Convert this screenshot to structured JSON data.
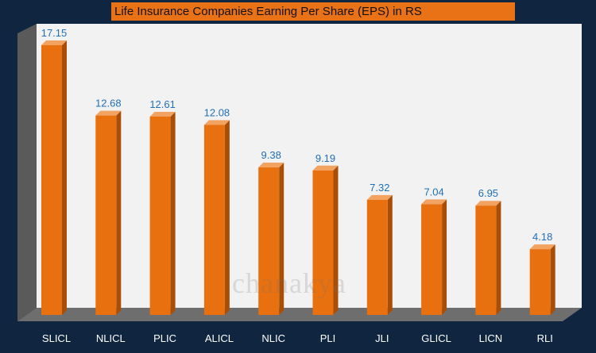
{
  "chart_data": {
    "type": "bar",
    "title": "Life Insurance Companies Earning Per Share (EPS) in RS",
    "categories": [
      "SLICL",
      "NLICL",
      "PLIC",
      "ALICL",
      "NLIC",
      "PLI",
      "JLI",
      "GLICL",
      "LICN",
      "RLI"
    ],
    "values": [
      17.15,
      12.68,
      12.61,
      12.08,
      9.38,
      9.19,
      7.32,
      7.04,
      6.95,
      4.18
    ],
    "data_labels": [
      "17.15",
      "12.68",
      "12.61",
      "12.08",
      "9.38",
      "9.19",
      "7.32",
      "7.04",
      "6.95",
      "4.18"
    ],
    "xlabel": "",
    "ylabel": "",
    "ylim": [
      0,
      20
    ],
    "grid": false,
    "legend": "none"
  },
  "watermark": "chanakya",
  "colors": {
    "background": "#102540",
    "title_bar": "#E97116",
    "bar_front": "#E8700F",
    "bar_side": "#A94E08",
    "bar_top": "#F2A261",
    "data_label": "#1F6FB8",
    "plot_wall": "#F2F2F2",
    "floor": "#6E6E6E",
    "axis_text": "#FFFFFF"
  }
}
